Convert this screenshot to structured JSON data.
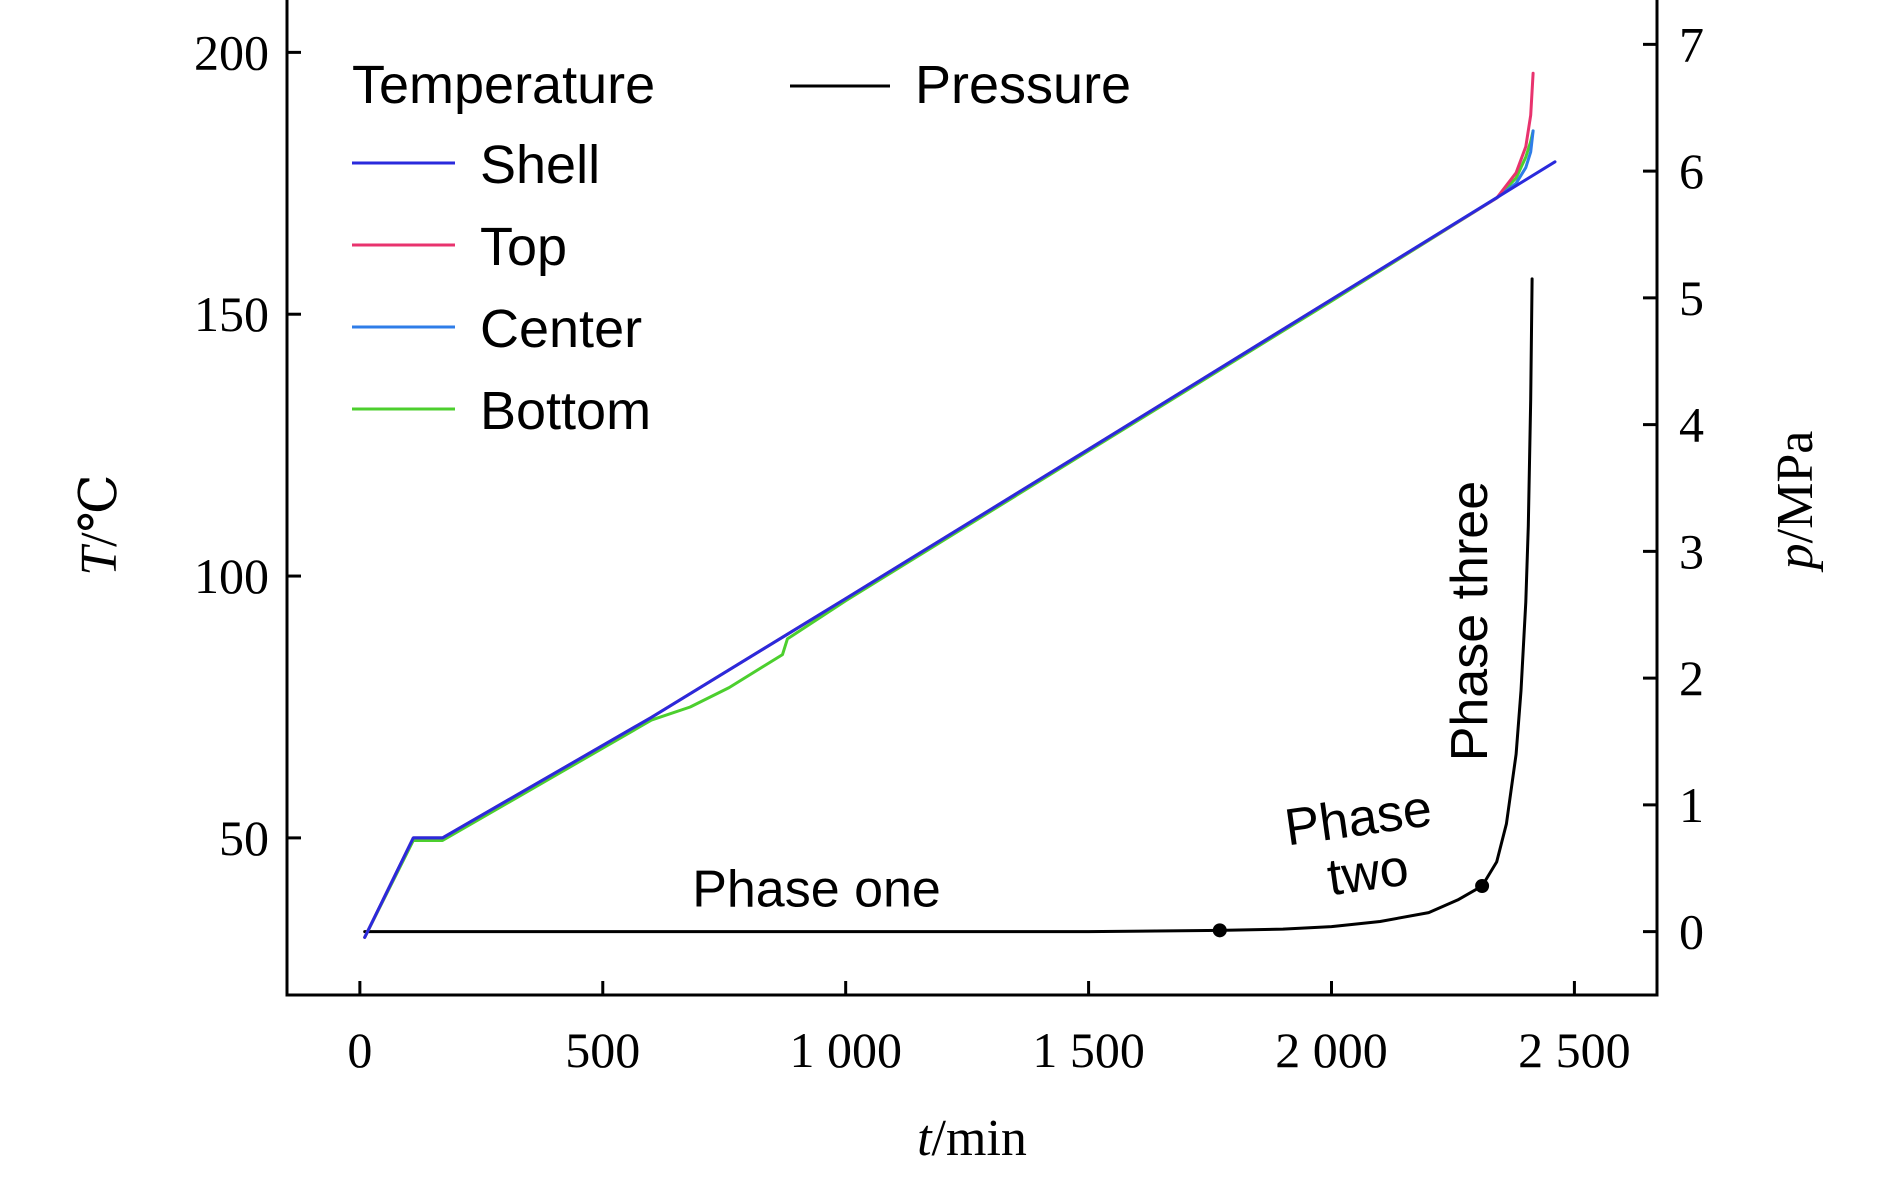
{
  "chart_data": {
    "type": "line",
    "xlabel": {
      "italic": "t",
      "rest": "/min"
    },
    "ylabel_left": {
      "italic": "T",
      "rest": "/℃"
    },
    "ylabel_right": {
      "italic": "p",
      "rest": "/MPa"
    },
    "xlim": [
      -150,
      2670
    ],
    "ylim_left": [
      20,
      210
    ],
    "ylim_right": [
      -0.5,
      7.35
    ],
    "x_ticks": [
      0,
      500,
      1000,
      1500,
      2000,
      2500
    ],
    "x_tick_labels": [
      "0",
      "500",
      "1 000",
      "1 500",
      "2 000",
      "2 500"
    ],
    "y_left_ticks": [
      50,
      100,
      150,
      200
    ],
    "y_left_tick_labels": [
      "50",
      "100",
      "150",
      "200"
    ],
    "y_right_ticks": [
      0,
      1,
      2,
      3,
      4,
      5,
      6,
      7
    ],
    "y_right_tick_labels": [
      "0",
      "1",
      "2",
      "3",
      "4",
      "5",
      "6",
      "7"
    ],
    "legend": {
      "temperature_header": "Temperature",
      "pressure_label": "Pressure",
      "placement": "top-left"
    },
    "series": [
      {
        "name": "Shell",
        "axis": "left",
        "color": "#2a2adc",
        "x": [
          10,
          110,
          170,
          600,
          1000,
          1500,
          2000,
          2360,
          2460
        ],
        "y": [
          31,
          50,
          50,
          73,
          95.7,
          124.2,
          152.8,
          173.4,
          179.1
        ]
      },
      {
        "name": "Top",
        "axis": "left",
        "color": "#e8336e",
        "x": [
          10,
          110,
          170,
          600,
          1000,
          1500,
          2000,
          2340,
          2380,
          2400,
          2410,
          2415
        ],
        "y": [
          31,
          50,
          50,
          73,
          95.7,
          124.2,
          152.8,
          172.2,
          177,
          182,
          188,
          196
        ]
      },
      {
        "name": "Center",
        "axis": "left",
        "color": "#2f7de8",
        "x": [
          10,
          110,
          170,
          600,
          1000,
          1500,
          2000,
          2340,
          2380,
          2400,
          2410,
          2415
        ],
        "y": [
          31,
          50,
          50,
          73,
          95.7,
          124.2,
          152.8,
          172.2,
          175,
          178,
          181,
          185
        ]
      },
      {
        "name": "Bottom",
        "axis": "left",
        "color": "#4ccf2e",
        "x": [
          10,
          110,
          170,
          600,
          680,
          760,
          870,
          880,
          1000,
          1500,
          2000,
          2340,
          2380,
          2400,
          2410,
          2415
        ],
        "y": [
          31,
          49.5,
          49.5,
          72.5,
          75,
          78.7,
          85,
          88,
          95.3,
          123.9,
          152.5,
          172.2,
          176,
          180,
          183,
          185
        ]
      },
      {
        "name": "Pressure",
        "axis": "right",
        "color": "#000000",
        "x": [
          10,
          500,
          1000,
          1500,
          1770,
          1900,
          2000,
          2100,
          2200,
          2260,
          2310,
          2340,
          2360,
          2380,
          2390,
          2400,
          2405,
          2410,
          2413
        ],
        "y": [
          0,
          0,
          0,
          0,
          0.01,
          0.02,
          0.04,
          0.08,
          0.15,
          0.25,
          0.36,
          0.55,
          0.85,
          1.4,
          1.9,
          2.6,
          3.2,
          4.2,
          5.15
        ]
      }
    ],
    "phase_points": [
      {
        "x": 1770,
        "p": 0.01
      },
      {
        "x": 2310,
        "p": 0.36
      }
    ],
    "annotations": [
      {
        "text": "Phase one",
        "x": 940,
        "p": 0.2,
        "rotate": 0
      },
      {
        "text": "Phase",
        "x": 2060,
        "p": 0.76,
        "rotate": -8
      },
      {
        "text": "two",
        "x": 2080,
        "p": 0.33,
        "rotate": -8
      },
      {
        "text": "Phase three",
        "x": 2320,
        "p": 2.45,
        "rotate": -90
      }
    ]
  }
}
